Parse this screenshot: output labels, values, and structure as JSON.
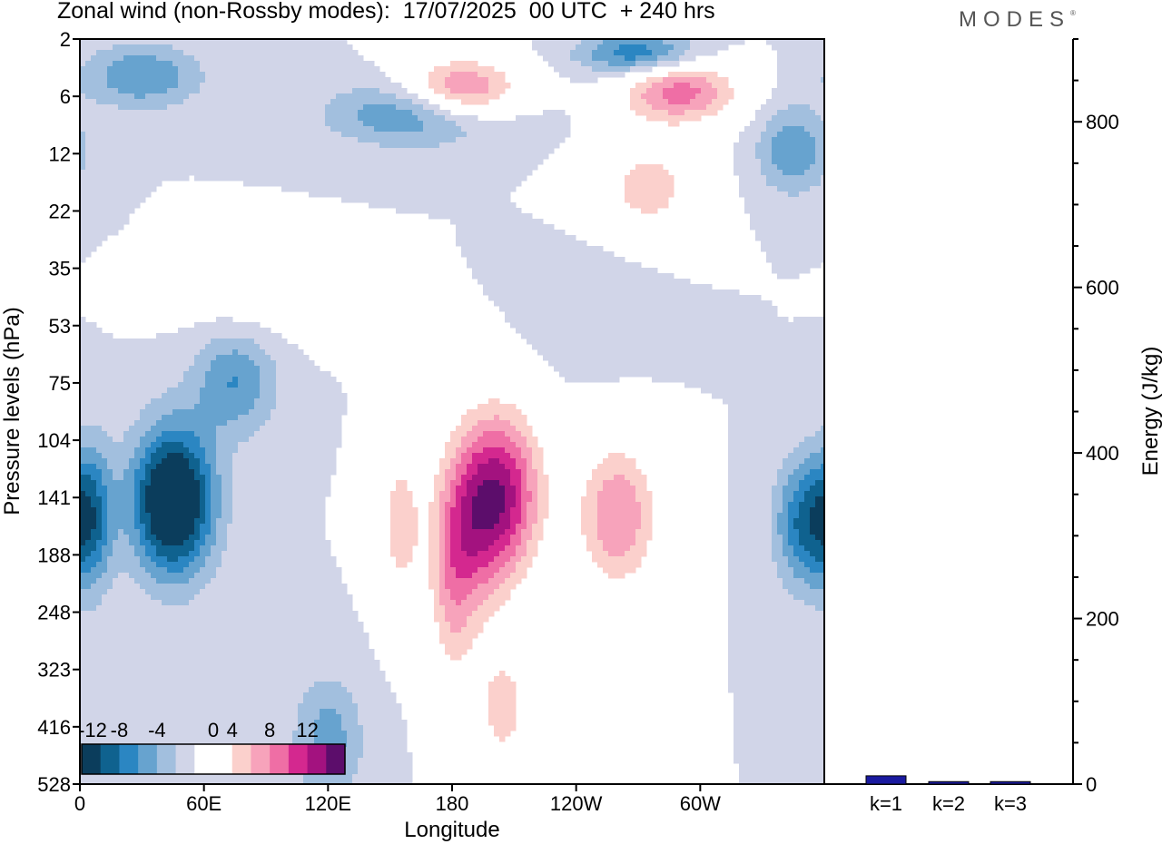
{
  "header": {
    "title": "Zonal wind (non-Rossby modes):  17/07/2025  00 UTC  + 240 hrs",
    "brand": "MODES",
    "brand_mark": "®"
  },
  "chart_data": [
    {
      "type": "heatmap",
      "title": "Zonal wind (non-Rossby modes):  17/07/2025  00 UTC  + 240 hrs",
      "xlabel": "Longitude",
      "ylabel": "Pressure levels (hPa)",
      "x_ticks": [
        "0",
        "60E",
        "120E",
        "180",
        "120W",
        "60W"
      ],
      "x_tick_degrees": [
        0,
        60,
        120,
        180,
        240,
        300
      ],
      "xlim": [
        0,
        360
      ],
      "y_ticks": [
        "2",
        "6",
        "12",
        "22",
        "35",
        "53",
        "75",
        "104",
        "141",
        "188",
        "248",
        "323",
        "416",
        "528"
      ],
      "colorbar": {
        "labels": [
          "-12",
          "-8",
          "-4",
          "0",
          "4",
          "8",
          "12"
        ],
        "levels": [
          -12,
          -10,
          -8,
          -6,
          -4,
          -2,
          0,
          2,
          4,
          6,
          8,
          10,
          12,
          14
        ],
        "colors": [
          "#0b3d5c",
          "#0f628f",
          "#2b86c2",
          "#67a3cf",
          "#a2bfde",
          "#d1d5e8",
          "#ffffff",
          "#ffffff",
          "#fbd0cc",
          "#f7a3bb",
          "#ef6ea5",
          "#d4288f",
          "#a3127f",
          "#5c0d6b"
        ]
      },
      "features": [
        {
          "lon": 45,
          "level": 0.62,
          "lon_width": 14,
          "level_width": 0.07,
          "value": -15
        },
        {
          "lon": 5,
          "level": 0.64,
          "lon_width": 8,
          "level_width": 0.07,
          "value": -8
        },
        {
          "lon": 75,
          "level": 0.46,
          "lon_width": 14,
          "level_width": 0.05,
          "value": -6
        },
        {
          "lon": 120,
          "level": 0.94,
          "lon_width": 12,
          "level_width": 0.06,
          "value": -5
        },
        {
          "lon": 180,
          "level": 0.74,
          "lon_width": 8,
          "level_width": 0.1,
          "value": 5
        },
        {
          "lon": 205,
          "level": 0.61,
          "lon_width": 14,
          "level_width": 0.08,
          "value": 11
        },
        {
          "lon": 190,
          "level": 0.65,
          "lon_width": 12,
          "level_width": 0.09,
          "value": 7
        },
        {
          "lon": 155,
          "level": 0.65,
          "lon_width": 8,
          "level_width": 0.08,
          "value": 5
        },
        {
          "lon": 260,
          "level": 0.64,
          "lon_width": 14,
          "level_width": 0.07,
          "value": 8
        },
        {
          "lon": 205,
          "level": 0.9,
          "lon_width": 10,
          "level_width": 0.06,
          "value": 5
        },
        {
          "lon": 350,
          "level": 0.65,
          "lon_width": 10,
          "level_width": 0.06,
          "value": -8
        },
        {
          "lon": 185,
          "level": 0.07,
          "lon_width": 20,
          "level_width": 0.03,
          "value": 10
        },
        {
          "lon": 165,
          "level": 0.1,
          "lon_width": 30,
          "level_width": 0.03,
          "value": -7
        },
        {
          "lon": 290,
          "level": 0.07,
          "lon_width": 20,
          "level_width": 0.03,
          "value": 9
        },
        {
          "lon": 345,
          "level": 0.15,
          "lon_width": 12,
          "level_width": 0.04,
          "value": -6
        },
        {
          "lon": 30,
          "level": 0.05,
          "lon_width": 20,
          "level_width": 0.03,
          "value": -6
        },
        {
          "lon": 270,
          "level": 0.02,
          "lon_width": 20,
          "level_width": 0.02,
          "value": -8
        },
        {
          "lon": 275,
          "level": 0.2,
          "lon_width": 18,
          "level_width": 0.05,
          "value": 5
        },
        {
          "lon": 85,
          "level": 0.35,
          "lon_width": 25,
          "level_width": 0.04,
          "value": 2
        },
        {
          "lon": 250,
          "level": 0.36,
          "lon_width": 20,
          "level_width": 0.05,
          "value": -2
        }
      ]
    },
    {
      "type": "bar",
      "ylabel": "Energy (J/kg)",
      "categories": [
        "k=1",
        "k=2",
        "k=3"
      ],
      "values": [
        10,
        3,
        3
      ],
      "ylim": [
        0,
        900
      ],
      "y_ticks": [
        0,
        200,
        400,
        600,
        800
      ],
      "bar_color": "#1a1aa0"
    }
  ]
}
